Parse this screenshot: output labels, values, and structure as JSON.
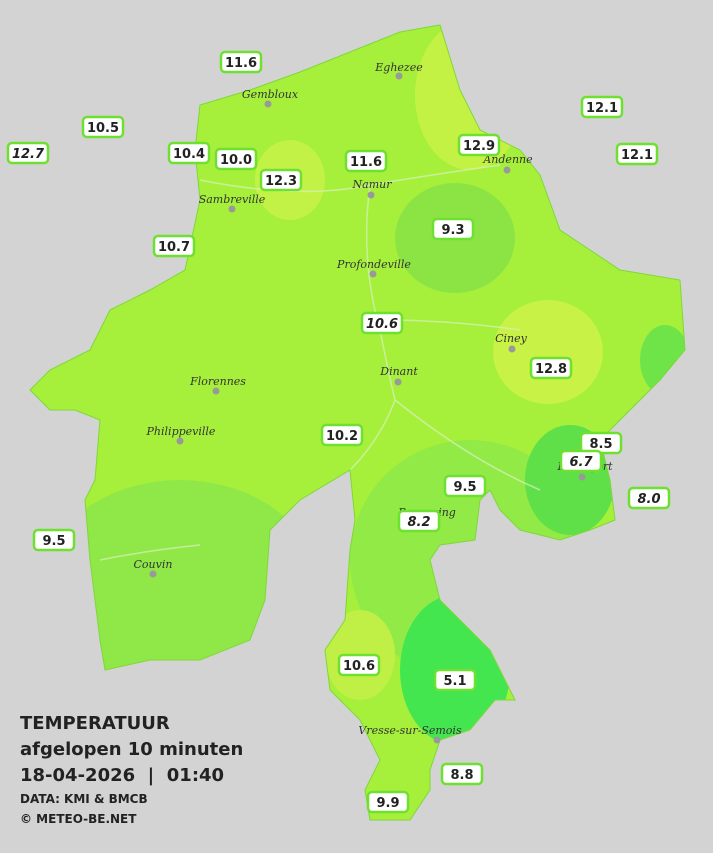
{
  "readings": [
    "11.6",
    "12.1",
    "10.5",
    "12.9",
    "12.7",
    "10.4",
    "10.0",
    "11.6",
    "12.1",
    "12.3",
    "9.3",
    "10.7",
    "10.6",
    "12.8",
    "8.5",
    "10.2",
    "6.7",
    "9.5",
    "8.0",
    "8.2",
    "9.5",
    "10.6",
    "5.1",
    "8.8",
    "9.9"
  ],
  "cities": [
    "Eghezee",
    "Gembloux",
    "Andenne",
    "Namur",
    "Sambreville",
    "Profondeville",
    "Ciney",
    "Dinant",
    "Florennes",
    "Philippeville",
    "Rochefort",
    "Beauraing",
    "Couvin",
    "Vresse-sur-Semois"
  ],
  "caption": {
    "title": "TEMPERATUUR",
    "subtitle": "afgelopen 10 minuten",
    "datetime": "18-04-2026  |  01:40",
    "source": "DATA: KMI & BMCB",
    "credit": "© METEO-BE.NET"
  }
}
